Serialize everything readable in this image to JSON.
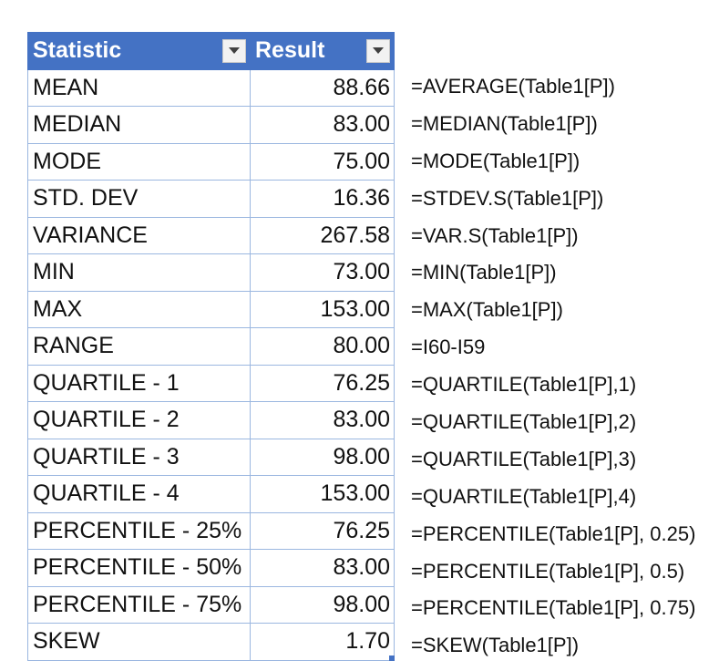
{
  "table": {
    "headers": {
      "statistic": "Statistic",
      "result": "Result"
    },
    "accent_color": "#4472c4",
    "filter_icon": "dropdown-arrow-icon",
    "rows": [
      {
        "statistic": "MEAN",
        "result": "88.66"
      },
      {
        "statistic": "MEDIAN",
        "result": "83.00"
      },
      {
        "statistic": "MODE",
        "result": "75.00"
      },
      {
        "statistic": "STD. DEV",
        "result": "16.36"
      },
      {
        "statistic": "VARIANCE",
        "result": "267.58"
      },
      {
        "statistic": "MIN",
        "result": "73.00"
      },
      {
        "statistic": "MAX",
        "result": "153.00"
      },
      {
        "statistic": "RANGE",
        "result": "80.00"
      },
      {
        "statistic": "QUARTILE - 1",
        "result": "76.25"
      },
      {
        "statistic": "QUARTILE - 2",
        "result": "83.00"
      },
      {
        "statistic": "QUARTILE - 3",
        "result": "98.00"
      },
      {
        "statistic": "QUARTILE - 4",
        "result": "153.00"
      },
      {
        "statistic": "PERCENTILE - 25%",
        "result": "76.25"
      },
      {
        "statistic": "PERCENTILE - 50%",
        "result": "83.00"
      },
      {
        "statistic": "PERCENTILE - 75%",
        "result": "98.00"
      },
      {
        "statistic": "SKEW",
        "result": "1.70"
      }
    ]
  },
  "formulas": [
    "=AVERAGE(Table1[P])",
    "=MEDIAN(Table1[P])",
    "=MODE(Table1[P])",
    "=STDEV.S(Table1[P])",
    "=VAR.S(Table1[P])",
    "=MIN(Table1[P])",
    "=MAX(Table1[P])",
    "=I60-I59",
    "=QUARTILE(Table1[P],1)",
    "=QUARTILE(Table1[P],2)",
    "=QUARTILE(Table1[P],3)",
    "=QUARTILE(Table1[P],4)",
    "=PERCENTILE(Table1[P], 0.25)",
    "=PERCENTILE(Table1[P], 0.5)",
    "=PERCENTILE(Table1[P], 0.75)",
    "=SKEW(Table1[P])"
  ]
}
